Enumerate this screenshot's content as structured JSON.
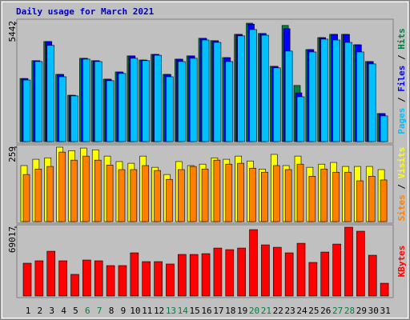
{
  "title": "Daily usage for March 2021",
  "legend_separator": " / ",
  "chart_data": [
    {
      "type": "bar3d",
      "ylim": [
        0,
        5442
      ],
      "yticks": [
        5442
      ],
      "series": [
        {
          "name": "Hits",
          "color": "#008040",
          "values": [
            2900,
            3720,
            4600,
            3090,
            2130,
            3830,
            3720,
            2870,
            3200,
            3940,
            3750,
            4010,
            3090,
            3790,
            3940,
            4750,
            4640,
            3860,
            4930,
            5442,
            4970,
            3460,
            5340,
            2580,
            4230,
            4780,
            4930,
            4930,
            4450,
            3680,
            1290
          ]
        },
        {
          "name": "Files",
          "color": "#0000ff",
          "values": [
            2900,
            3720,
            4600,
            3090,
            2130,
            3830,
            3720,
            2870,
            3200,
            3940,
            3750,
            4010,
            3090,
            3790,
            3940,
            4750,
            4640,
            3860,
            4930,
            5400,
            4970,
            3460,
            5190,
            2240,
            4230,
            4780,
            4930,
            4930,
            4450,
            3680,
            1290
          ]
        },
        {
          "name": "Pages",
          "color": "#00c0ff",
          "values": [
            2830,
            3680,
            4420,
            2980,
            2100,
            3790,
            3680,
            2800,
            3130,
            3830,
            3720,
            3970,
            2980,
            3680,
            3830,
            4670,
            4560,
            3680,
            4860,
            5150,
            4890,
            3390,
            4160,
            2060,
            4120,
            4710,
            4670,
            4560,
            4120,
            3570,
            1180
          ]
        }
      ]
    },
    {
      "type": "bar3d",
      "ylim": [
        0,
        259
      ],
      "yticks": [
        259
      ],
      "series": [
        {
          "name": "Visits",
          "color": "#ffff00",
          "values": [
            195,
            217,
            222,
            259,
            247,
            256,
            250,
            228,
            209,
            203,
            228,
            189,
            164,
            209,
            195,
            200,
            222,
            217,
            228,
            211,
            183,
            234,
            195,
            228,
            189,
            200,
            206,
            192,
            192,
            192,
            181
          ]
        },
        {
          "name": "Sites",
          "color": "#ff8000",
          "values": [
            164,
            183,
            192,
            242,
            214,
            228,
            214,
            197,
            181,
            181,
            195,
            178,
            147,
            181,
            192,
            183,
            214,
            200,
            203,
            186,
            172,
            195,
            181,
            200,
            158,
            183,
            172,
            172,
            142,
            158,
            145
          ]
        }
      ]
    },
    {
      "type": "bar3d",
      "ylim": [
        0,
        69017
      ],
      "yticks": [
        69017
      ],
      "categories": [
        "1",
        "2",
        "3",
        "4",
        "5",
        "6",
        "7",
        "8",
        "9",
        "10",
        "11",
        "12",
        "13",
        "14",
        "15",
        "16",
        "17",
        "18",
        "19",
        "20",
        "21",
        "22",
        "23",
        "24",
        "25",
        "26",
        "27",
        "28",
        "29",
        "30",
        "31"
      ],
      "label_color": "#000000",
      "weekend_label_color": "#008040",
      "weekend_days": [
        6,
        7,
        13,
        14,
        20,
        21,
        27,
        28
      ],
      "series": [
        {
          "name": "KBytes",
          "color": "#ff0000",
          "values": [
            32900,
            35300,
            44900,
            35300,
            21700,
            36100,
            35300,
            30500,
            30500,
            43300,
            34500,
            34500,
            32100,
            41700,
            41700,
            42500,
            48100,
            46500,
            48100,
            66600,
            51300,
            48900,
            43300,
            52900,
            33700,
            44100,
            52100,
            69017,
            65000,
            40900,
            12800
          ]
        }
      ]
    }
  ]
}
